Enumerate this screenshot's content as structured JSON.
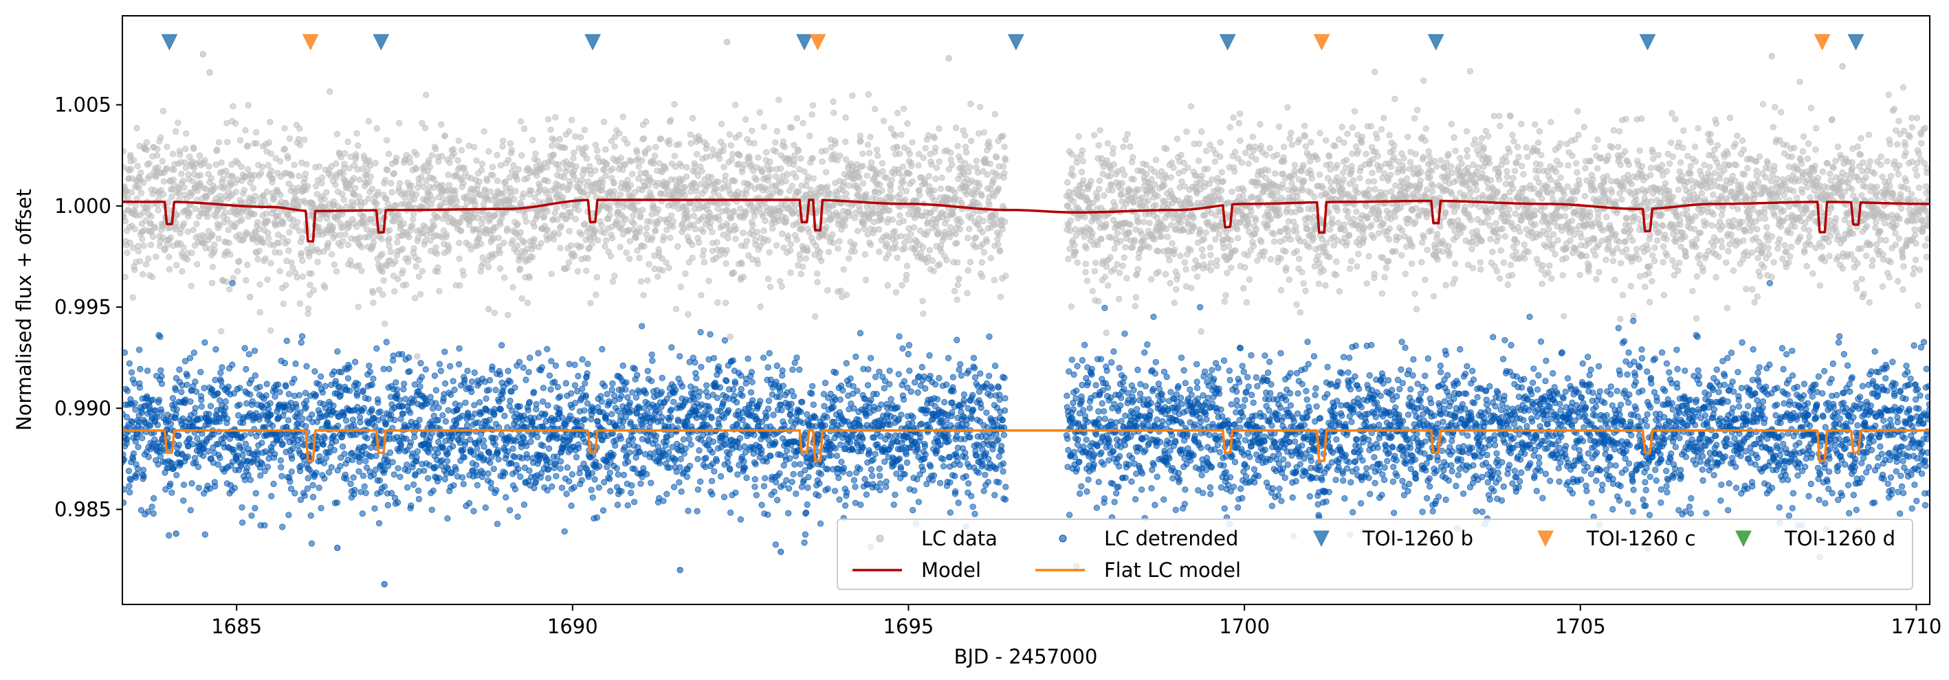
{
  "chart_data": {
    "type": "scatter",
    "title": "",
    "xlabel": "BJD - 2457000",
    "ylabel": "Normalised flux + offset",
    "xlim": [
      1683.3,
      1710.2
    ],
    "ylim": [
      0.9803,
      1.0094
    ],
    "xticks": [
      1685,
      1690,
      1695,
      1700,
      1705,
      1710
    ],
    "yticks": [
      0.985,
      0.99,
      0.995,
      1.0,
      1.005
    ],
    "ytick_labels": [
      "0.985",
      "0.990",
      "0.995",
      "1.000",
      "1.005"
    ],
    "grid": false,
    "data_gap": [
      1696.45,
      1697.35
    ],
    "series": [
      {
        "name": "LC data",
        "kind": "scatter",
        "color": "#bbbbbb",
        "level": 1.0001,
        "scatter_sd": 0.0018
      },
      {
        "name": "LC detrended",
        "kind": "scatter",
        "color": "#0055b0",
        "level": 0.9889,
        "scatter_sd": 0.0017
      },
      {
        "name": "Model",
        "kind": "line",
        "color": "#b30000",
        "baseline_x": [
          1683.3,
          1684.0,
          1685.5,
          1686.1,
          1687.5,
          1689.0,
          1690.3,
          1692.0,
          1693.5,
          1695.0,
          1696.5,
          1697.5,
          1699.0,
          1700.0,
          1701.5,
          1702.8,
          1704.5,
          1705.9,
          1707.0,
          1708.6,
          1710.2
        ],
        "baseline_y": [
          1.0002,
          1.0002,
          0.99995,
          0.99975,
          0.9998,
          0.99985,
          1.0003,
          1.0003,
          1.0003,
          1.0001,
          0.9998,
          0.99968,
          0.9998,
          1.0001,
          1.0002,
          1.00025,
          1.0001,
          0.99985,
          1.0001,
          1.0002,
          1.0001
        ]
      },
      {
        "name": "Flat LC model",
        "kind": "line",
        "color": "#ff7f0e",
        "level": 0.9889
      }
    ],
    "transits": [
      {
        "planet": "b",
        "x": 1684.0,
        "depth": 0.0011
      },
      {
        "planet": "c",
        "x": 1686.1,
        "depth": 0.0015
      },
      {
        "planet": "b",
        "x": 1687.15,
        "depth": 0.0011
      },
      {
        "planet": "b",
        "x": 1690.3,
        "depth": 0.0011
      },
      {
        "planet": "b",
        "x": 1693.45,
        "depth": 0.0011
      },
      {
        "planet": "c",
        "x": 1693.65,
        "depth": 0.0015
      },
      {
        "planet": "b",
        "x": 1699.75,
        "depth": 0.0011
      },
      {
        "planet": "c",
        "x": 1701.15,
        "depth": 0.0015
      },
      {
        "planet": "b",
        "x": 1702.85,
        "depth": 0.0011
      },
      {
        "planet": "b",
        "x": 1706.0,
        "depth": 0.0011
      },
      {
        "planet": "c",
        "x": 1708.6,
        "depth": 0.0015
      },
      {
        "planet": "b",
        "x": 1709.1,
        "depth": 0.0011
      }
    ],
    "transit_markers": [
      {
        "planet": "b",
        "x": 1684.0
      },
      {
        "planet": "c",
        "x": 1686.1
      },
      {
        "planet": "b",
        "x": 1687.15
      },
      {
        "planet": "b",
        "x": 1690.3
      },
      {
        "planet": "b",
        "x": 1693.45
      },
      {
        "planet": "c",
        "x": 1693.65
      },
      {
        "planet": "b",
        "x": 1696.6
      },
      {
        "planet": "b",
        "x": 1699.75
      },
      {
        "planet": "c",
        "x": 1701.15
      },
      {
        "planet": "b",
        "x": 1702.85
      },
      {
        "planet": "b",
        "x": 1706.0
      },
      {
        "planet": "c",
        "x": 1708.6
      },
      {
        "planet": "b",
        "x": 1709.1
      }
    ],
    "marker_y": 1.0081,
    "planets": [
      {
        "id": "b",
        "name": "TOI-1260 b",
        "color": "#3a7fb5"
      },
      {
        "id": "c",
        "name": "TOI-1260 c",
        "color": "#ff8c28"
      },
      {
        "id": "d",
        "name": "TOI-1260 d",
        "color": "#3ca03c"
      }
    ],
    "outliers": [
      {
        "x": 1684.6,
        "y": 1.0066
      },
      {
        "x": 1684.5,
        "y": 1.0075
      },
      {
        "x": 1692.3,
        "y": 1.0081
      },
      {
        "x": 1695.6,
        "y": 1.0073
      },
      {
        "x": 1707.85,
        "y": 1.0074
      },
      {
        "x": 1708.9,
        "y": 1.0069
      },
      {
        "x": 1684.8,
        "y": 0.9963
      },
      {
        "x": 1685.2,
        "y": 0.9955
      },
      {
        "x": 1688.75,
        "y": 0.9949
      },
      {
        "x": 1692.4,
        "y": 0.9967
      },
      {
        "x": 1695.75,
        "y": 0.9964
      },
      {
        "x": 1709.2,
        "y": 0.9955
      },
      {
        "x": 1687.2,
        "y": 0.9813
      },
      {
        "x": 1691.6,
        "y": 0.982
      },
      {
        "x": 1684.1,
        "y": 0.9838
      },
      {
        "x": 1686.5,
        "y": 0.9831
      },
      {
        "x": 1693.1,
        "y": 0.9829
      },
      {
        "x": 1697.5,
        "y": 0.9822
      }
    ],
    "legend": {
      "placement": "lower-right",
      "ncol": 5,
      "entries": [
        "LC data",
        "LC detrended",
        "TOI-1260 b",
        "TOI-1260 c",
        "TOI-1260 d",
        "Model",
        "Flat LC model"
      ]
    }
  }
}
